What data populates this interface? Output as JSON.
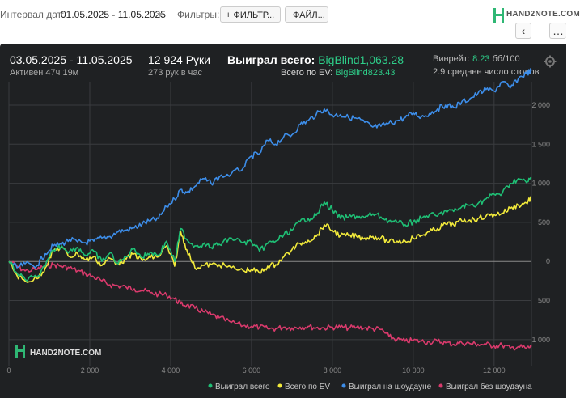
{
  "toolbar": {
    "interval_label": "Интервал дат:",
    "interval_value": "01.05.2025 - 11.05.2025",
    "filters_label": "Фильтры:",
    "filter_button": "+ ФИЛЬТР...",
    "file_button": "ФАЙЛ...",
    "logo_text": "HAND2NOTE.COM",
    "nav_back": "‹",
    "nav_more": "…"
  },
  "header": {
    "date_range": "03.05.2025 - 11.05.2025",
    "active": "Активен 47ч 19м",
    "hands": "12 924 Руки",
    "hands_per_hour": "273 рук в час",
    "won_label": "Выиграл всего: ",
    "won_value": "BigBlind1,063.28",
    "ev_label": "Всего по EV: ",
    "ev_value": "BigBlind823.43",
    "winrate_label": "Винрейт: ",
    "winrate_value": "8.23",
    "winrate_unit": " бб/100",
    "tables": "2.9 среднее число столов",
    "watermark": "HAND2NOTE.COM"
  },
  "colors": {
    "won": "#1fbf75",
    "ev": "#f2ea3b",
    "showdown": "#3d8eea",
    "non_showdown": "#d93a6c",
    "grid": "#3a3c3f",
    "axis_text": "#8a8a8a",
    "zero": "#8a8a8a",
    "background": "#1f2123"
  },
  "chart_data": {
    "type": "line",
    "xlim": [
      0,
      12924
    ],
    "ylim": [
      -1250,
      2300
    ],
    "x_ticks": [
      0,
      2000,
      4000,
      6000,
      8000,
      10000,
      12000
    ],
    "x_tick_labels": [
      "0",
      "2 000",
      "4 000",
      "6 000",
      "8 000",
      "10 000",
      "12 000"
    ],
    "y_ticks": [
      2000,
      1500,
      1000,
      500,
      0,
      -500,
      -1000
    ],
    "y_tick_labels": [
      "2 000",
      "1 500",
      "1 000",
      "500",
      "0",
      "500",
      "1 000"
    ],
    "series": [
      {
        "name": "Выиграл всего",
        "color": "#1fbf75",
        "x": [
          0,
          200,
          400,
          700,
          900,
          1100,
          1300,
          1500,
          1700,
          1900,
          2100,
          2300,
          2500,
          2700,
          2900,
          3100,
          3300,
          3500,
          3700,
          3900,
          4100,
          4250,
          4400,
          4600,
          4800,
          5000,
          5200,
          5500,
          5800,
          6000,
          6200,
          6400,
          6600,
          6800,
          7000,
          7200,
          7400,
          7600,
          7800,
          8000,
          8200,
          8400,
          8600,
          8800,
          9000,
          9200,
          9400,
          9600,
          9800,
          10000,
          10200,
          10400,
          10600,
          10800,
          11000,
          11200,
          11400,
          11600,
          11800,
          12000,
          12200,
          12400,
          12600,
          12800,
          12924
        ],
        "y": [
          0,
          -150,
          -230,
          -200,
          -60,
          150,
          200,
          130,
          180,
          80,
          130,
          0,
          110,
          -30,
          60,
          170,
          50,
          120,
          80,
          260,
          0,
          420,
          280,
          200,
          220,
          180,
          220,
          300,
          240,
          250,
          130,
          230,
          260,
          340,
          400,
          510,
          550,
          590,
          760,
          660,
          550,
          570,
          580,
          560,
          610,
          570,
          520,
          500,
          470,
          510,
          550,
          600,
          580,
          650,
          640,
          700,
          720,
          740,
          800,
          860,
          870,
          1000,
          1060,
          1010,
          1063
        ]
      },
      {
        "name": "Всего по EV",
        "color": "#f2ea3b",
        "x": [
          0,
          200,
          400,
          700,
          900,
          1100,
          1300,
          1500,
          1700,
          1900,
          2100,
          2300,
          2500,
          2700,
          2900,
          3100,
          3300,
          3500,
          3700,
          3900,
          4100,
          4250,
          4400,
          4600,
          4800,
          5000,
          5200,
          5500,
          5800,
          6000,
          6200,
          6400,
          6600,
          6800,
          7000,
          7200,
          7400,
          7600,
          7800,
          8000,
          8200,
          8400,
          8600,
          8800,
          9000,
          9200,
          9400,
          9600,
          9800,
          10000,
          10200,
          10400,
          10600,
          10800,
          11000,
          11200,
          11400,
          11600,
          11800,
          12000,
          12200,
          12400,
          12600,
          12800,
          12924
        ],
        "y": [
          0,
          -180,
          -250,
          -220,
          -80,
          140,
          180,
          60,
          100,
          20,
          60,
          -50,
          40,
          -20,
          30,
          100,
          10,
          50,
          60,
          200,
          -60,
          380,
          150,
          -80,
          -50,
          -40,
          -40,
          -80,
          -120,
          -100,
          -150,
          -60,
          -40,
          60,
          150,
          230,
          270,
          320,
          470,
          400,
          330,
          330,
          320,
          300,
          320,
          300,
          250,
          260,
          260,
          300,
          330,
          380,
          420,
          480,
          470,
          520,
          530,
          550,
          580,
          600,
          620,
          680,
          720,
          750,
          820
        ]
      },
      {
        "name": "Выиграл на шоудауне",
        "color": "#3d8eea",
        "x": [
          0,
          200,
          400,
          700,
          900,
          1100,
          1300,
          1500,
          1700,
          1900,
          2100,
          2300,
          2500,
          2700,
          2900,
          3100,
          3300,
          3500,
          3700,
          3900,
          4100,
          4250,
          4400,
          4600,
          4800,
          5000,
          5200,
          5500,
          5800,
          6000,
          6200,
          6400,
          6600,
          6800,
          7000,
          7200,
          7400,
          7600,
          7800,
          8000,
          8200,
          8400,
          8600,
          8800,
          9000,
          9200,
          9400,
          9600,
          9800,
          10000,
          10200,
          10400,
          10600,
          10800,
          11000,
          11200,
          11400,
          11600,
          11800,
          12000,
          12200,
          12400,
          12600,
          12800,
          12924
        ],
        "y": [
          0,
          -80,
          -30,
          -50,
          100,
          200,
          220,
          280,
          250,
          240,
          260,
          300,
          320,
          380,
          400,
          430,
          480,
          520,
          550,
          700,
          800,
          920,
          880,
          960,
          1060,
          1000,
          1080,
          1120,
          1200,
          1350,
          1380,
          1550,
          1500,
          1600,
          1620,
          1750,
          1800,
          1880,
          1950,
          1870,
          1880,
          1840,
          1830,
          1780,
          1720,
          1730,
          1770,
          1800,
          1840,
          1900,
          1850,
          1890,
          1950,
          2000,
          1970,
          2040,
          2080,
          2150,
          2200,
          2180,
          2300,
          2220,
          2340,
          2410,
          2440
        ]
      },
      {
        "name": "Выиграл без шоудауна",
        "color": "#d93a6c",
        "x": [
          0,
          200,
          400,
          700,
          900,
          1100,
          1300,
          1500,
          1700,
          1900,
          2100,
          2300,
          2500,
          2700,
          2900,
          3100,
          3300,
          3500,
          3700,
          3900,
          4100,
          4250,
          4400,
          4600,
          4800,
          5000,
          5200,
          5500,
          5800,
          6000,
          6200,
          6400,
          6600,
          6800,
          7000,
          7200,
          7400,
          7600,
          7800,
          8000,
          8200,
          8400,
          8600,
          8800,
          9000,
          9200,
          9400,
          9600,
          9800,
          10000,
          10200,
          10400,
          10600,
          10800,
          11000,
          11200,
          11400,
          11600,
          11800,
          12000,
          12200,
          12400,
          12600,
          12800,
          12924
        ],
        "y": [
          0,
          -60,
          -120,
          -100,
          -60,
          -40,
          -60,
          -80,
          -120,
          -160,
          -200,
          -250,
          -300,
          -310,
          -330,
          -350,
          -370,
          -400,
          -420,
          -430,
          -480,
          -540,
          -560,
          -600,
          -640,
          -680,
          -720,
          -780,
          -820,
          -830,
          -840,
          -860,
          -860,
          -840,
          -850,
          -840,
          -830,
          -850,
          -850,
          -840,
          -840,
          -850,
          -840,
          -850,
          -860,
          -870,
          -960,
          -1000,
          -1020,
          -1010,
          -1020,
          -1030,
          -1020,
          -1040,
          -1060,
          -1040,
          -1050,
          -1060,
          -1060,
          -1080,
          -1070,
          -1110,
          -1090,
          -1110,
          -1090
        ]
      }
    ]
  }
}
